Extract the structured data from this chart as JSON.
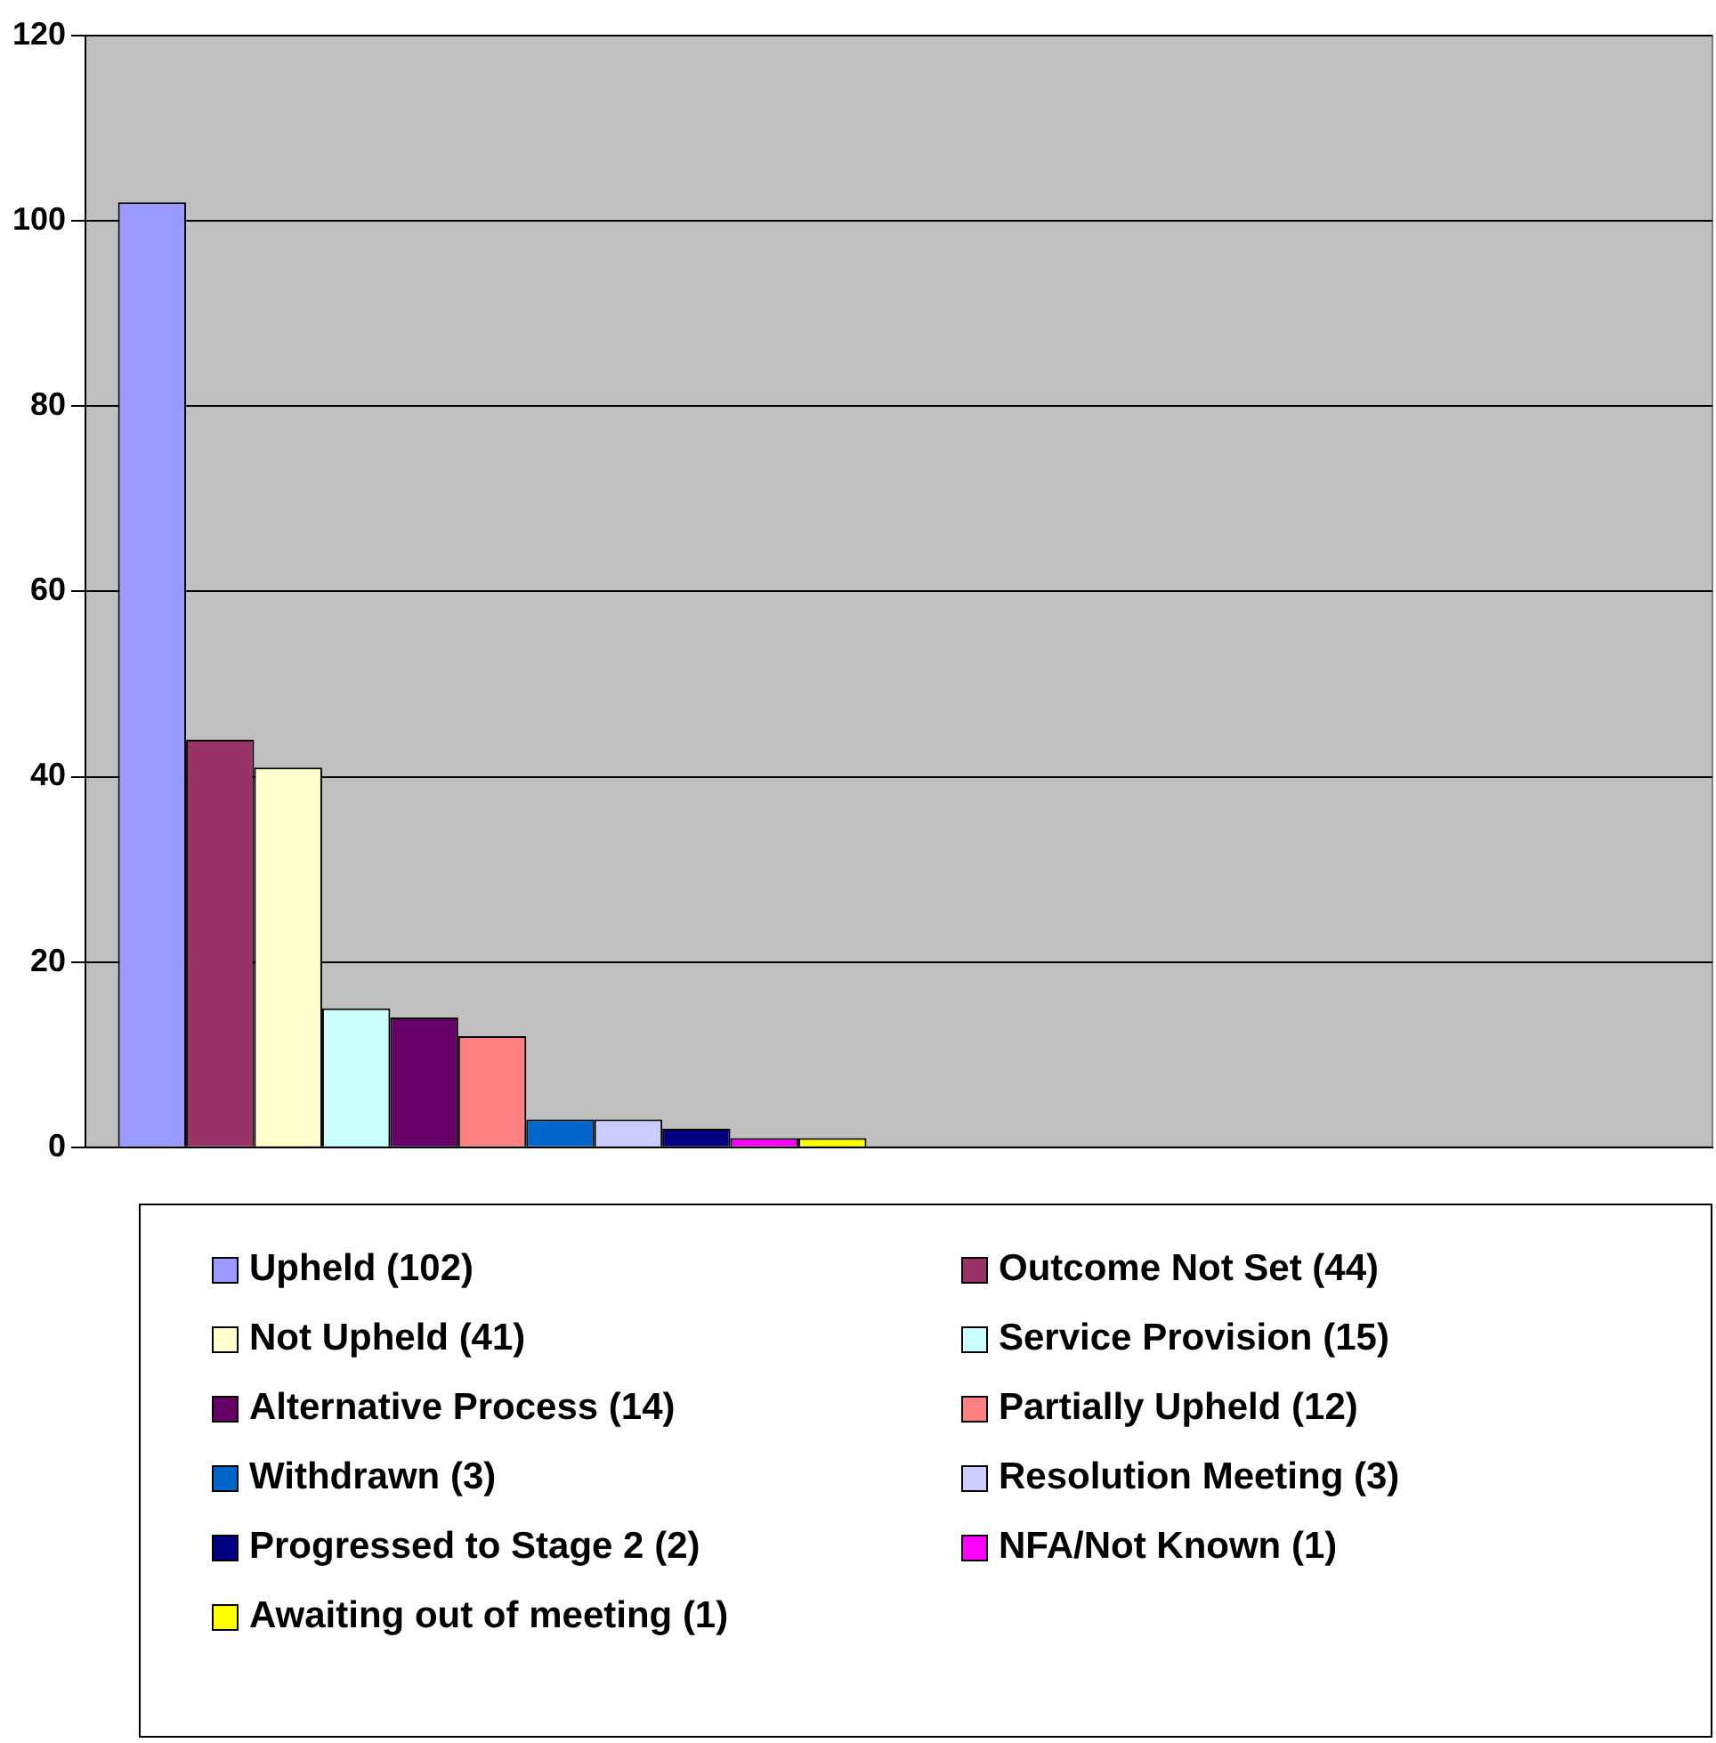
{
  "chart_data": {
    "type": "bar",
    "categories": [
      null,
      null
    ],
    "ylim": [
      0,
      120
    ],
    "yticks": [
      0,
      20,
      40,
      60,
      80,
      100,
      120
    ],
    "grid": "y",
    "legend": "bottom",
    "series": [
      {
        "name": "Upheld (102)",
        "color": "#9999ff",
        "values": [
          102,
          null
        ]
      },
      {
        "name": "Outcome Not Set (44)",
        "color": "#993366",
        "values": [
          44,
          null
        ]
      },
      {
        "name": "Not Upheld (41)",
        "color": "#ffffcc",
        "values": [
          41,
          null
        ]
      },
      {
        "name": "Service Provision (15)",
        "color": "#ccffff",
        "values": [
          15,
          null
        ]
      },
      {
        "name": "Alternative Process (14)",
        "color": "#660066",
        "values": [
          14,
          null
        ]
      },
      {
        "name": "Partially Upheld (12)",
        "color": "#ff8080",
        "values": [
          12,
          null
        ]
      },
      {
        "name": "Withdrawn (3)",
        "color": "#0066cc",
        "values": [
          3,
          null
        ]
      },
      {
        "name": "Resolution Meeting (3)",
        "color": "#ccccff",
        "values": [
          3,
          null
        ]
      },
      {
        "name": "Progressed to Stage 2 (2)",
        "color": "#000080",
        "values": [
          2,
          null
        ]
      },
      {
        "name": "NFA/Not Known (1)",
        "color": "#ff00ff",
        "values": [
          1,
          null
        ]
      },
      {
        "name": "Awaiting out of meeting (1)",
        "color": "#ffff00",
        "values": [
          1,
          null
        ]
      }
    ]
  }
}
